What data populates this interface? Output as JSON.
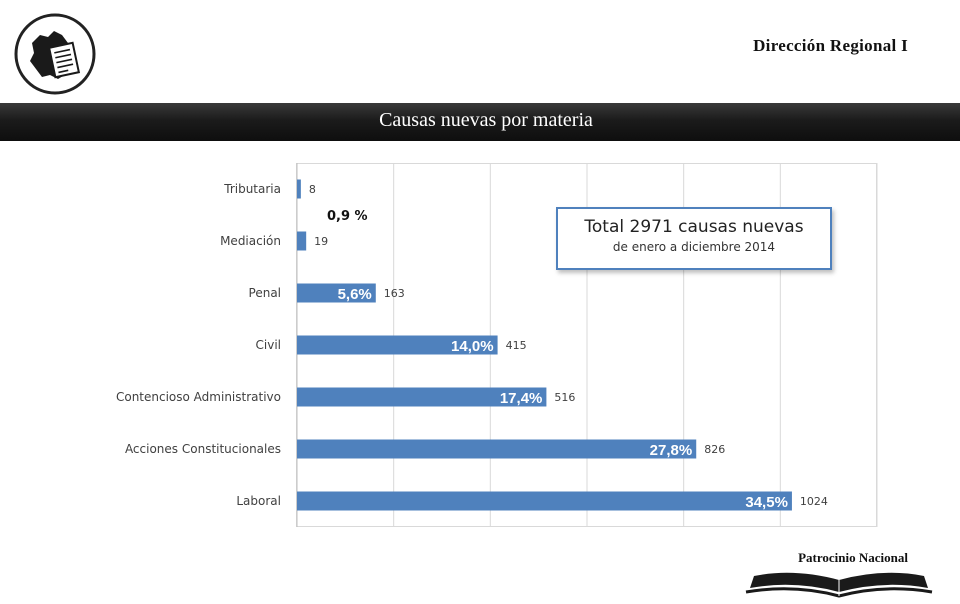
{
  "header": {
    "org_title": "Dirección Regional I",
    "slide_title": "Causas nuevas por materia"
  },
  "summary": {
    "total_line": "Total 2971 causas nuevas",
    "period_line": "de enero a diciembre 2014"
  },
  "footer": {
    "label": "Patrocinio Nacional"
  },
  "icons": {
    "logo": "region-map-document-icon",
    "footer": "open-book-icon"
  },
  "colors": {
    "bar": "#4f81bd",
    "banner": "#1b1b1b"
  },
  "chart_data": {
    "type": "bar",
    "orientation": "horizontal",
    "categories": [
      "Tributaria",
      "Mediación",
      "Penal",
      "Civil",
      "Contencioso Administrativo",
      "Acciones Constitucionales",
      "Laboral"
    ],
    "values": [
      8,
      19,
      163,
      415,
      516,
      826,
      1024
    ],
    "value_labels": [
      "8",
      "19",
      "163",
      "415",
      "516",
      "826",
      "1024"
    ],
    "percent_labels": [
      "",
      "",
      "5,6%",
      "14,0%",
      "17,4%",
      "27,8%",
      "34,5%"
    ],
    "annotations": [
      {
        "text": "0,9 %",
        "between": [
          "Tributaria",
          "Mediación"
        ]
      }
    ],
    "xlim": [
      0,
      1200
    ],
    "x_gridlines": [
      0,
      200,
      400,
      600,
      800,
      1000,
      1200
    ],
    "x_tick_labels_shown": false,
    "grid": true,
    "legend": "none",
    "title": "",
    "xlabel": "",
    "ylabel": ""
  }
}
